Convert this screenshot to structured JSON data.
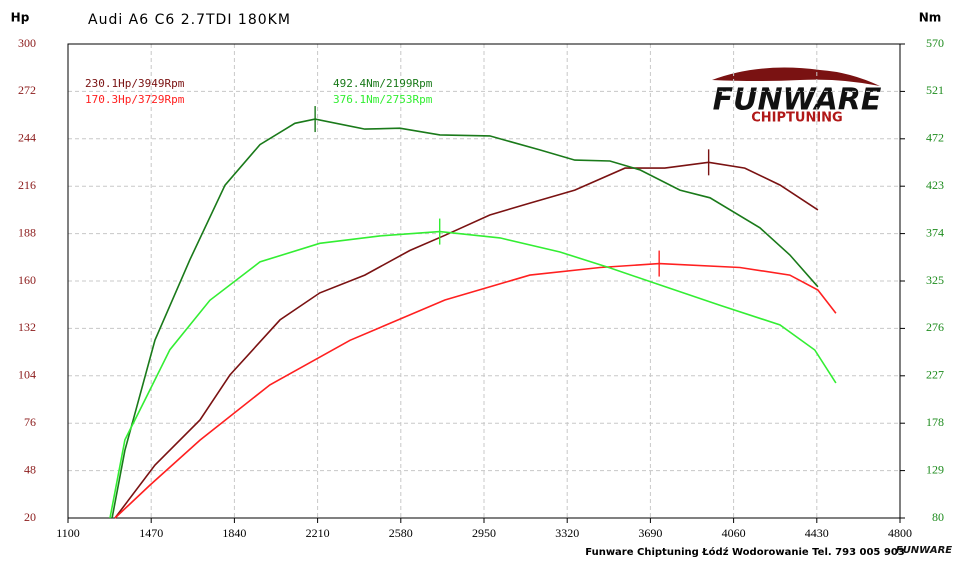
{
  "chart_data": {
    "type": "line",
    "title": "Audi A6 C6 2.7TDI 180KM",
    "y_label": "Hp",
    "y2_label": "Nm",
    "xlim": [
      1100,
      4800
    ],
    "xticks": [
      1100,
      1470,
      1840,
      2210,
      2580,
      2950,
      3320,
      3690,
      4060,
      4430,
      4800
    ],
    "ylim": [
      20,
      300
    ],
    "yticks": [
      20,
      48,
      76,
      104,
      132,
      160,
      188,
      216,
      244,
      272,
      300
    ],
    "y2lim": [
      80,
      570
    ],
    "y2ticks": [
      80,
      129,
      178,
      227,
      276,
      325,
      374,
      423,
      472,
      521,
      570
    ],
    "grid": true,
    "series": [
      {
        "color": "#7a1212",
        "axis": "y",
        "x": [
          1309,
          1487,
          1687,
          1820,
          2043,
          2220,
          2420,
          2620,
          2776,
          2976,
          3154,
          3354,
          3577,
          3754,
          3949,
          4110,
          4266,
          4435
        ],
        "values": [
          20,
          51.3,
          77.9,
          104.5,
          137,
          153,
          163.5,
          178,
          187,
          199,
          206,
          213.7,
          226.7,
          226.7,
          230.1,
          226.7,
          216.7,
          202
        ]
      },
      {
        "color": "#ff2020",
        "axis": "y",
        "x": [
          1309,
          1465,
          1687,
          1998,
          2354,
          2776,
          3154,
          3466,
          3729,
          4088,
          4310,
          4435,
          4515
        ],
        "values": [
          20,
          39.5,
          66,
          98.6,
          125,
          148.8,
          163.5,
          168,
          170.3,
          168,
          163.5,
          154.7,
          141
        ]
      },
      {
        "color": "#1a7a1a",
        "axis": "y2",
        "x": [
          1296,
          1353,
          1487,
          1642,
          1798,
          1954,
          2109,
          2199,
          2420,
          2576,
          2754,
          2976,
          3198,
          3354,
          3510,
          3643,
          3821,
          3955,
          4177,
          4310,
          4435
        ],
        "values": [
          80,
          150,
          264,
          347,
          424,
          466,
          488,
          492.4,
          482,
          483,
          476,
          475,
          460.5,
          450,
          449,
          440,
          419,
          411,
          380,
          352,
          319
        ]
      },
      {
        "color": "#33ee33",
        "axis": "y2",
        "x": [
          1287,
          1353,
          1442,
          1553,
          1731,
          1954,
          2220,
          2487,
          2753,
          3021,
          3288,
          3510,
          3732,
          3999,
          4266,
          4421,
          4515
        ],
        "values": [
          80,
          160.7,
          202,
          254,
          305,
          344.7,
          364,
          371.6,
          376.1,
          369.6,
          355,
          338.5,
          321,
          300,
          279.6,
          253.7,
          219.6
        ]
      }
    ],
    "annotations": [
      {
        "text": "230.1Hp/3949Rpm",
        "color": "#7a1212"
      },
      {
        "text": "170.3Hp/3729Rpm",
        "color": "#ff2020"
      },
      {
        "text": "492.4Nm/2199Rpm",
        "color": "#1a7a1a"
      },
      {
        "text": "376.1Nm/2753Rpm",
        "color": "#33ee33"
      }
    ],
    "logo": {
      "name": "FUNWARE",
      "tagline": "CHIPTUNING"
    },
    "footer": "Funware Chiptuning Łódź Wodorowanie Tel. 793 005 903"
  }
}
